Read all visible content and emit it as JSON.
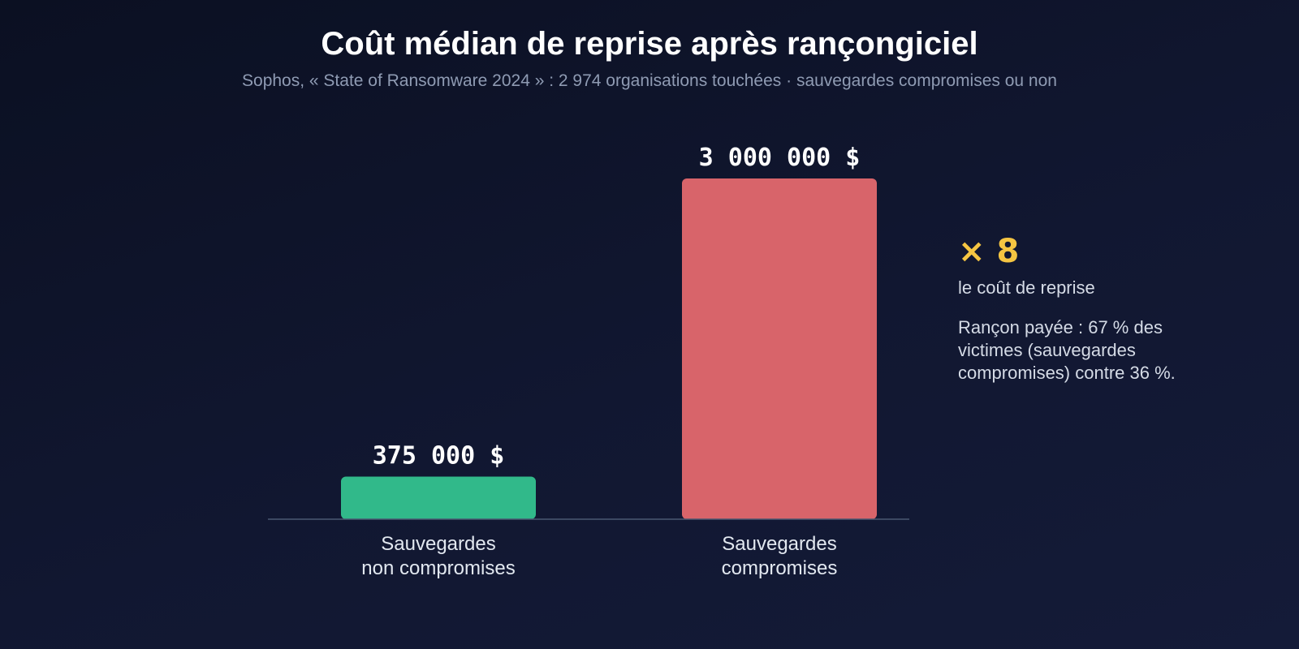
{
  "page": {
    "title": "Coût médian de reprise après rançongiciel",
    "subtitle": "Sophos, « State of Ransomware 2024 » : 2 974 organisations touchées · sauvegardes compromises ou non"
  },
  "chart_data": {
    "type": "bar",
    "categories": [
      [
        "Sauvegardes",
        "non compromises"
      ],
      [
        "Sauvegardes",
        "compromises"
      ]
    ],
    "values": [
      375000,
      3000000
    ],
    "value_labels": [
      "375 000 $",
      "3 000 000 $"
    ],
    "colors": [
      "#31b98a",
      "#d8646a"
    ],
    "ylim": [
      0,
      3000000
    ],
    "grid": false
  },
  "side_panel": {
    "multiplier": "× 8",
    "multiplier_caption": "le coût de reprise",
    "note": "Rançon payée : 67 % des victimes (sauvegardes compromises) contre 36 %."
  },
  "colors": {
    "accent": "#f5c542",
    "axis": "#4a5872"
  }
}
